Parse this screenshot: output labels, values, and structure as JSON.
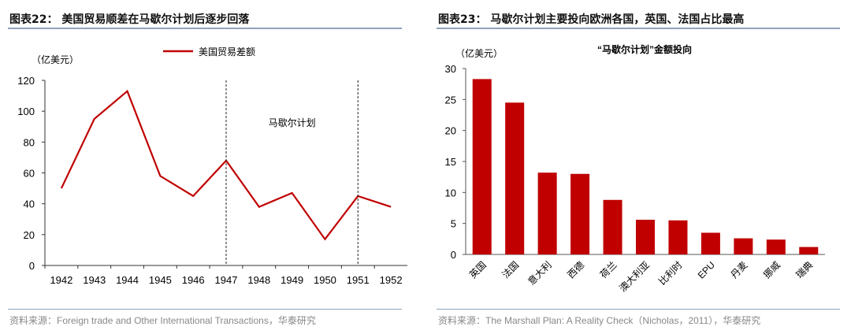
{
  "left": {
    "title": "图表22：  美国贸易顺差在马歇尔计划后逐步回落",
    "source": "资料来源：Foreign trade and Other International Transactions，华泰研究"
  },
  "right": {
    "title": "图表23：  马歇尔计划主要投向欧洲各国，英国、法国占比最高",
    "source": "资料来源：The Marshall Plan: A Reality Check（Nicholas，2011），华泰研究"
  },
  "chart_data": [
    {
      "type": "line",
      "ylabel": "（亿美元）",
      "ylim": [
        0,
        120
      ],
      "yticks": [
        0,
        20,
        40,
        60,
        80,
        100,
        120
      ],
      "categories": [
        "1942",
        "1943",
        "1944",
        "1945",
        "1946",
        "1947",
        "1948",
        "1949",
        "1950",
        "1951",
        "1952"
      ],
      "series": [
        {
          "name": "美国贸易差额",
          "values": [
            50,
            95,
            113,
            58,
            45,
            68,
            38,
            47,
            17,
            45,
            38
          ],
          "color": "#c00000"
        }
      ],
      "annotations": [
        {
          "text": "马歇尔计划",
          "range": [
            "1947",
            "1951"
          ]
        }
      ],
      "legend": "top",
      "grid": false
    },
    {
      "type": "bar",
      "title": "“马歇尔计划”金额投向",
      "ylabel": "（亿美元）",
      "ylim": [
        0,
        30
      ],
      "yticks": [
        0,
        5,
        10,
        15,
        20,
        25,
        30
      ],
      "categories": [
        "英国",
        "法国",
        "意大利",
        "西德",
        "荷兰",
        "澳大利亚",
        "比利时",
        "EPU",
        "丹麦",
        "挪威",
        "瑞典"
      ],
      "values": [
        28.3,
        24.5,
        13.2,
        13.0,
        8.8,
        5.6,
        5.5,
        3.5,
        2.6,
        2.4,
        1.2
      ],
      "color": "#c00000",
      "grid": false
    }
  ]
}
